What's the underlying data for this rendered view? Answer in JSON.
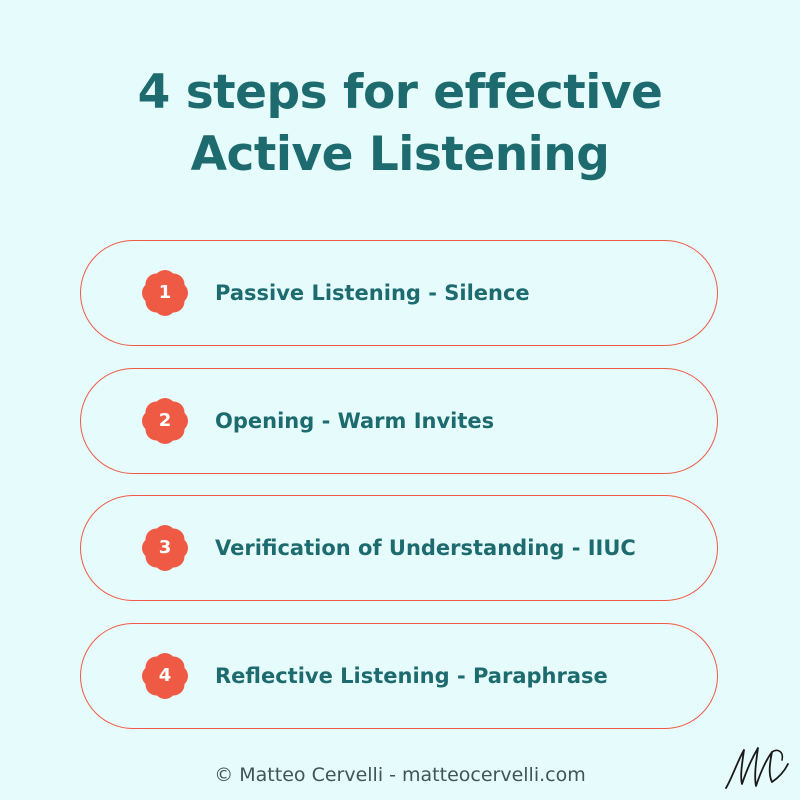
{
  "title": {
    "line1": "4 steps for effective",
    "line2": "Active Listening"
  },
  "steps": [
    {
      "number": "1",
      "label": "Passive Listening - Silence"
    },
    {
      "number": "2",
      "label": "Opening - Warm Invites"
    },
    {
      "number": "3",
      "label": "Verification of Understanding - IIUC"
    },
    {
      "number": "4",
      "label": "Reflective Listening - Paraphrase"
    }
  ],
  "footer": {
    "credit": "© Matteo Cervelli - matteocervelli.com"
  },
  "colors": {
    "background": "#e6fcfc",
    "title": "#1d6b6e",
    "accent": "#ef5a45",
    "badge_text": "#ffffff"
  },
  "icons": {
    "step_badge": "flower-badge-icon",
    "signature": "signature-icon"
  }
}
